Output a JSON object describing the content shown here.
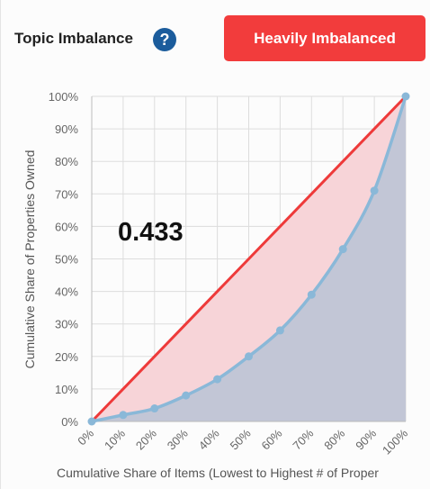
{
  "header": {
    "title": "Topic Imbalance",
    "help_symbol": "?",
    "badge_label": "Heavily Imbalanced",
    "badge_color": "#f23c3c"
  },
  "chart_data": {
    "type": "area",
    "x": [
      0,
      10,
      20,
      30,
      40,
      50,
      60,
      70,
      80,
      90,
      100
    ],
    "series": [
      {
        "values": [
          0,
          10,
          20,
          30,
          40,
          50,
          60,
          70,
          80,
          90,
          100
        ],
        "color": "#ee3a3a"
      },
      {
        "values": [
          0,
          2,
          4,
          8,
          13,
          20,
          28,
          39,
          53,
          71,
          100
        ],
        "color": "#8ab8d8"
      }
    ],
    "xticks": [
      "0%",
      "10%",
      "20%",
      "30%",
      "40%",
      "50%",
      "60%",
      "70%",
      "80%",
      "90%",
      "100%"
    ],
    "yticks": [
      "0%",
      "10%",
      "20%",
      "30%",
      "40%",
      "50%",
      "60%",
      "70%",
      "80%",
      "90%",
      "100%"
    ],
    "xlim": [
      0,
      100
    ],
    "ylim": [
      0,
      100
    ],
    "xlabel": "Cumulative Share of Items (Lowest to Highest # of Proper",
    "ylabel": "Cumulative Share of Properties Owned",
    "annotation": "0.433",
    "grid": true,
    "colors": {
      "inequality_fill": "#f7d4d8",
      "curve_fill": "#c2c6d6",
      "grid": "#dddddd"
    }
  }
}
